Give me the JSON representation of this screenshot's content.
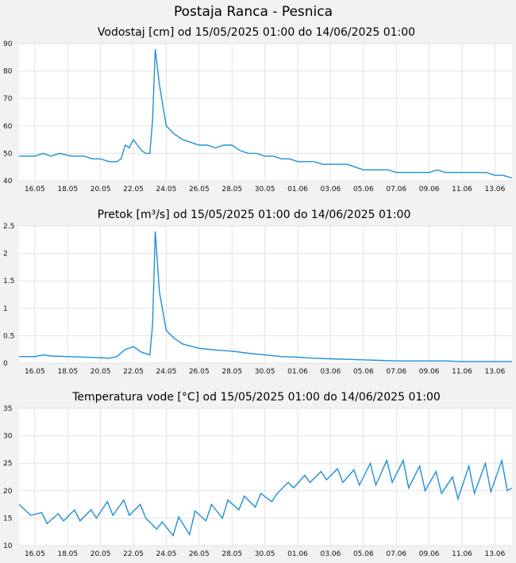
{
  "page": {
    "title": "Postaja Ranca - Pesnica"
  },
  "date_ticks": [
    "16.05",
    "18.05",
    "20.05",
    "22.05",
    "24.05",
    "26.05",
    "28.05",
    "30.05",
    "01.06",
    "03.06",
    "05.06",
    "07.06",
    "09.06",
    "11.06",
    "13.06"
  ],
  "style": {
    "line_color": "#1f8fd8",
    "grid_color": "#e3e3e3",
    "plot_bg": "#ffffff",
    "page_bg": "#f2f2f2"
  },
  "chart_data": [
    {
      "type": "line",
      "title": "Vodostaj [cm] od 15/05/2025 01:00 do 14/06/2025 01:00",
      "x_range": [
        "15/05/2025 01:00",
        "14/06/2025 01:00"
      ],
      "ylim": [
        40,
        90
      ],
      "yticks": [
        "40",
        "50",
        "60",
        "70",
        "80",
        "90"
      ],
      "grid": true,
      "series": [
        {
          "x": [
            "2025-05-15 01:00",
            "2025-05-16 00:00",
            "2025-05-16 12:00",
            "2025-05-17 00:00",
            "2025-05-17 12:00",
            "2025-05-18 06:00",
            "2025-05-19 00:00",
            "2025-05-19 12:00",
            "2025-05-20 00:00",
            "2025-05-20 12:00",
            "2025-05-21 00:00",
            "2025-05-21 06:00",
            "2025-05-21 12:00",
            "2025-05-21 18:00",
            "2025-05-22 00:00",
            "2025-05-22 06:00",
            "2025-05-22 12:00",
            "2025-05-22 18:00",
            "2025-05-23 00:00",
            "2025-05-23 04:00",
            "2025-05-23 08:00",
            "2025-05-23 14:00",
            "2025-05-24 00:00",
            "2025-05-24 12:00",
            "2025-05-25 00:00",
            "2025-05-25 12:00",
            "2025-05-26 00:00",
            "2025-05-26 12:00",
            "2025-05-27 00:00",
            "2025-05-27 12:00",
            "2025-05-28 00:00",
            "2025-05-28 12:00",
            "2025-05-29 00:00",
            "2025-05-29 12:00",
            "2025-05-30 00:00",
            "2025-05-30 12:00",
            "2025-05-31 00:00",
            "2025-05-31 12:00",
            "2025-06-01 00:00",
            "2025-06-01 12:00",
            "2025-06-02 00:00",
            "2025-06-02 12:00",
            "2025-06-03 00:00",
            "2025-06-03 12:00",
            "2025-06-04 00:00",
            "2025-06-04 12:00",
            "2025-06-05 00:00",
            "2025-06-05 12:00",
            "2025-06-06 00:00",
            "2025-06-06 12:00",
            "2025-06-07 00:00",
            "2025-06-07 12:00",
            "2025-06-08 00:00",
            "2025-06-08 12:00",
            "2025-06-09 00:00",
            "2025-06-09 12:00",
            "2025-06-10 00:00",
            "2025-06-10 12:00",
            "2025-06-11 00:00",
            "2025-06-11 12:00",
            "2025-06-12 00:00",
            "2025-06-12 12:00",
            "2025-06-13 00:00",
            "2025-06-13 12:00",
            "2025-06-14 01:00"
          ],
          "values": [
            49,
            49,
            50,
            49,
            50,
            49,
            49,
            48,
            48,
            47,
            47,
            48,
            53,
            52,
            55,
            53,
            51,
            50,
            50,
            62,
            88,
            75,
            60,
            57,
            55,
            54,
            53,
            53,
            52,
            53,
            53,
            51,
            50,
            50,
            49,
            49,
            48,
            48,
            47,
            47,
            47,
            46,
            46,
            46,
            46,
            45,
            44,
            44,
            44,
            44,
            43,
            43,
            43,
            43,
            43,
            44,
            43,
            43,
            43,
            43,
            43,
            43,
            42,
            42,
            41
          ]
        }
      ]
    },
    {
      "type": "line",
      "title": "Pretok [m³/s] od 15/05/2025 01:00 do 14/06/2025 01:00",
      "x_range": [
        "15/05/2025 01:00",
        "14/06/2025 01:00"
      ],
      "ylim": [
        0,
        2.5
      ],
      "yticks": [
        "0",
        "0.5",
        "1",
        "1.5",
        "2",
        "2.5"
      ],
      "grid": true,
      "series": [
        {
          "x": [
            "2025-05-15 01:00",
            "2025-05-16 00:00",
            "2025-05-16 12:00",
            "2025-05-17 00:00",
            "2025-05-18 00:00",
            "2025-05-19 00:00",
            "2025-05-20 00:00",
            "2025-05-20 12:00",
            "2025-05-21 00:00",
            "2025-05-21 12:00",
            "2025-05-22 00:00",
            "2025-05-22 12:00",
            "2025-05-23 00:00",
            "2025-05-23 04:00",
            "2025-05-23 08:00",
            "2025-05-23 14:00",
            "2025-05-24 00:00",
            "2025-05-24 12:00",
            "2025-05-25 00:00",
            "2025-05-26 00:00",
            "2025-05-27 00:00",
            "2025-05-28 00:00",
            "2025-05-29 00:00",
            "2025-05-30 00:00",
            "2025-05-31 00:00",
            "2025-06-01 00:00",
            "2025-06-02 00:00",
            "2025-06-03 00:00",
            "2025-06-04 00:00",
            "2025-06-05 00:00",
            "2025-06-06 00:00",
            "2025-06-07 00:00",
            "2025-06-08 00:00",
            "2025-06-09 00:00",
            "2025-06-10 00:00",
            "2025-06-11 00:00",
            "2025-06-12 00:00",
            "2025-06-13 00:00",
            "2025-06-14 01:00"
          ],
          "values": [
            0.12,
            0.12,
            0.15,
            0.13,
            0.12,
            0.11,
            0.1,
            0.09,
            0.12,
            0.25,
            0.3,
            0.2,
            0.15,
            0.7,
            2.4,
            1.3,
            0.6,
            0.45,
            0.35,
            0.27,
            0.24,
            0.22,
            0.18,
            0.15,
            0.12,
            0.11,
            0.09,
            0.08,
            0.07,
            0.06,
            0.05,
            0.04,
            0.04,
            0.04,
            0.04,
            0.03,
            0.03,
            0.03,
            0.03
          ]
        }
      ]
    },
    {
      "type": "line",
      "title": "Temperatura vode [°C] od 15/05/2025 01:00 do 14/06/2025 01:00",
      "x_range": [
        "15/05/2025 01:00",
        "14/06/2025 01:00"
      ],
      "ylim": [
        10,
        35
      ],
      "yticks": [
        "10",
        "15",
        "20",
        "25",
        "30",
        "35"
      ],
      "grid": true,
      "series": [
        {
          "x": [
            "2025-05-15 01:00",
            "2025-05-15 18:00",
            "2025-05-16 10:00",
            "2025-05-16 18:00",
            "2025-05-17 10:00",
            "2025-05-17 18:00",
            "2025-05-18 10:00",
            "2025-05-18 18:00",
            "2025-05-19 10:00",
            "2025-05-19 18:00",
            "2025-05-20 10:00",
            "2025-05-20 18:00",
            "2025-05-21 10:00",
            "2025-05-21 18:00",
            "2025-05-22 10:00",
            "2025-05-22 18:00",
            "2025-05-23 10:00",
            "2025-05-23 18:00",
            "2025-05-24 10:00",
            "2025-05-24 18:00",
            "2025-05-25 10:00",
            "2025-05-25 18:00",
            "2025-05-26 10:00",
            "2025-05-26 18:00",
            "2025-05-27 10:00",
            "2025-05-27 18:00",
            "2025-05-28 10:00",
            "2025-05-28 18:00",
            "2025-05-29 10:00",
            "2025-05-29 18:00",
            "2025-05-30 10:00",
            "2025-05-30 18:00",
            "2025-05-31 10:00",
            "2025-05-31 18:00",
            "2025-06-01 10:00",
            "2025-06-01 18:00",
            "2025-06-02 10:00",
            "2025-06-02 18:00",
            "2025-06-03 10:00",
            "2025-06-03 18:00",
            "2025-06-04 10:00",
            "2025-06-04 18:00",
            "2025-06-05 10:00",
            "2025-06-05 18:00",
            "2025-06-06 10:00",
            "2025-06-06 18:00",
            "2025-06-07 10:00",
            "2025-06-07 18:00",
            "2025-06-08 10:00",
            "2025-06-08 18:00",
            "2025-06-09 10:00",
            "2025-06-09 18:00",
            "2025-06-10 10:00",
            "2025-06-10 18:00",
            "2025-06-11 10:00",
            "2025-06-11 18:00",
            "2025-06-12 10:00",
            "2025-06-12 18:00",
            "2025-06-13 10:00",
            "2025-06-13 18:00",
            "2025-06-14 01:00"
          ],
          "values": [
            17.5,
            15.5,
            16,
            14,
            15.8,
            14.5,
            16.5,
            14.5,
            16.5,
            15,
            18,
            15.5,
            18.3,
            15.5,
            17.5,
            15,
            13,
            14.3,
            11.8,
            15.2,
            12,
            16.3,
            14.5,
            17.5,
            15,
            18.3,
            16.5,
            19,
            17,
            19.5,
            18,
            19.5,
            21.5,
            20.5,
            22.8,
            21.5,
            23.5,
            22,
            24,
            21.5,
            23.8,
            21,
            25,
            21,
            25.5,
            21.5,
            25.5,
            20.5,
            24.5,
            20,
            23.5,
            19.5,
            22.5,
            18.5,
            24.5,
            19.5,
            25,
            19.8,
            25.5,
            20,
            20.5
          ]
        }
      ]
    }
  ]
}
